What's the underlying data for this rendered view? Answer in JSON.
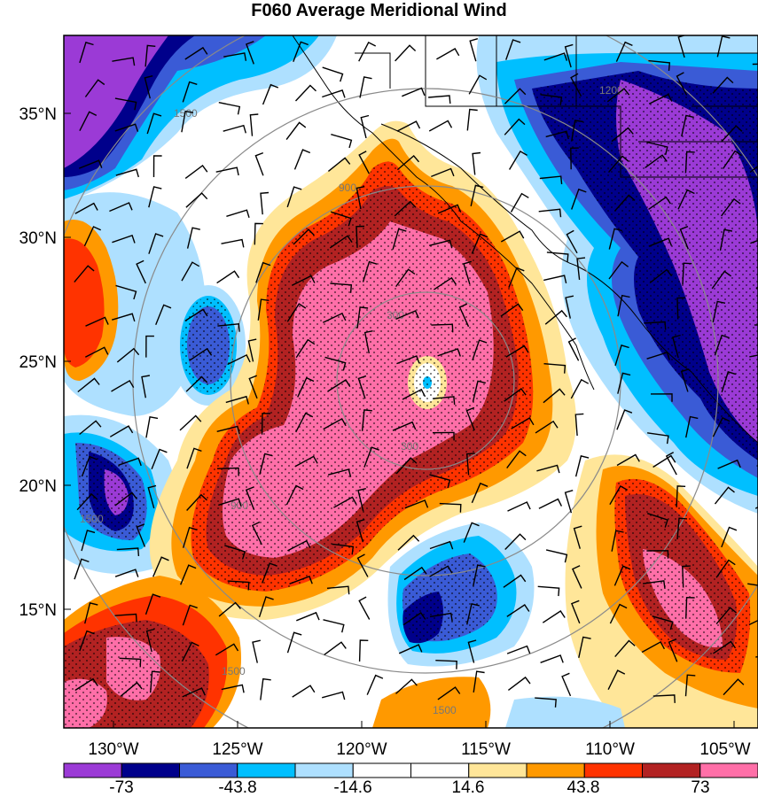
{
  "title": "F060 Average Meridional Wind",
  "map": {
    "lon_range": [
      -132,
      -104
    ],
    "lat_range": [
      10,
      38
    ],
    "lat_ticks": [
      "35°N",
      "30°N",
      "25°N",
      "20°N",
      "15°N"
    ],
    "lon_ticks": [
      "130°W",
      "125°W",
      "120°W",
      "115°W",
      "110°W",
      "105°W"
    ],
    "range_ring_labels": [
      "300",
      "300",
      "900",
      "900",
      "1500",
      "1500",
      "1500",
      "1500",
      "1200"
    ],
    "filled_contours": "meridional-wind",
    "overlays": [
      "wind-barbs",
      "stipple-significance",
      "coastlines",
      "state-borders",
      "range-rings"
    ]
  },
  "colorbar": {
    "colors": [
      "#9b3ad6",
      "#00008b",
      "#3a5bd6",
      "#00bfff",
      "#aee0ff",
      "#ffffff",
      "#ffffff",
      "#ffe699",
      "#ff9900",
      "#ff3300",
      "#b22222",
      "#ff6fa8"
    ],
    "labels": [
      "-73",
      "-43.8",
      "-14.6",
      "14.6",
      "43.8",
      "73"
    ]
  }
}
